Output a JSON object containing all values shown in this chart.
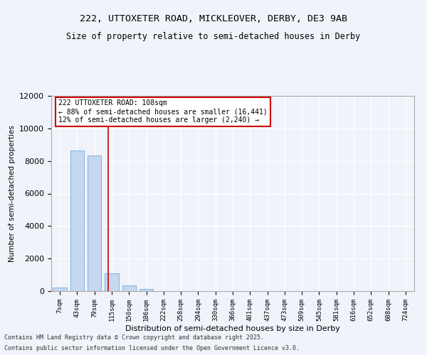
{
  "title_line1": "222, UTTOXETER ROAD, MICKLEOVER, DERBY, DE3 9AB",
  "title_line2": "Size of property relative to semi-detached houses in Derby",
  "xlabel": "Distribution of semi-detached houses by size in Derby",
  "ylabel": "Number of semi-detached properties",
  "footer_line1": "Contains HM Land Registry data © Crown copyright and database right 2025.",
  "footer_line2": "Contains public sector information licensed under the Open Government Licence v3.0.",
  "bin_labels": [
    "7sqm",
    "43sqm",
    "79sqm",
    "115sqm",
    "150sqm",
    "186sqm",
    "222sqm",
    "258sqm",
    "294sqm",
    "330sqm",
    "366sqm",
    "401sqm",
    "437sqm",
    "473sqm",
    "509sqm",
    "545sqm",
    "581sqm",
    "616sqm",
    "652sqm",
    "688sqm",
    "724sqm"
  ],
  "bar_values": [
    200,
    8650,
    8350,
    1100,
    350,
    120,
    0,
    0,
    0,
    0,
    0,
    0,
    0,
    0,
    0,
    0,
    0,
    0,
    0,
    0,
    0
  ],
  "bar_color": "#c5d8f0",
  "bar_edge_color": "#5b9bd5",
  "property_size": 108,
  "property_label": "222 UTTOXETER ROAD: 108sqm",
  "pct_smaller": 88,
  "count_smaller": 16441,
  "pct_larger": 12,
  "count_larger": 2240,
  "vline_color": "#cc0000",
  "annotation_box_color": "#cc0000",
  "ylim": [
    0,
    12000
  ],
  "yticks": [
    0,
    2000,
    4000,
    6000,
    8000,
    10000,
    12000
  ],
  "background_color": "#f0f4fa",
  "grid_color": "#ffffff",
  "vline_x_index": 2.78
}
